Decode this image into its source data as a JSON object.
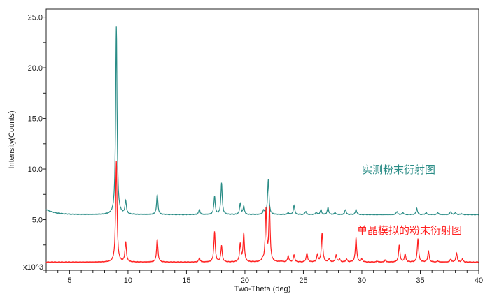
{
  "chart_data": {
    "type": "line",
    "title": "",
    "xlabel": "Two-Theta (deg)",
    "ylabel": "Intensity(Counts)",
    "y_multiplier_label": "x10^3",
    "xlim": [
      3,
      40
    ],
    "ylim": [
      0,
      25.8
    ],
    "x_ticks": [
      5,
      10,
      15,
      20,
      25,
      30,
      35,
      40
    ],
    "x_tick_labels": [
      "5",
      "10",
      "15",
      "20",
      "25",
      "30",
      "35",
      "40"
    ],
    "y_ticks": [
      5,
      10,
      15,
      20,
      25
    ],
    "y_tick_labels": [
      "5.0",
      "10.0",
      "15.0",
      "20.0",
      "25.0"
    ],
    "grid": false,
    "series": [
      {
        "name": "实测粉末衍射图",
        "color": "#2a8c86",
        "baseline": 5.5,
        "baseline_start": 6.0,
        "peaks": [
          [
            9.0,
            24.1
          ],
          [
            9.8,
            6.8
          ],
          [
            12.5,
            7.5
          ],
          [
            16.1,
            6.0
          ],
          [
            17.4,
            7.3
          ],
          [
            18.0,
            8.6
          ],
          [
            19.6,
            6.6
          ],
          [
            19.9,
            6.3
          ],
          [
            21.6,
            5.9
          ],
          [
            22.0,
            9.0
          ],
          [
            23.7,
            5.7
          ],
          [
            24.2,
            6.4
          ],
          [
            25.2,
            5.8
          ],
          [
            26.1,
            5.7
          ],
          [
            26.5,
            6.0
          ],
          [
            27.1,
            6.2
          ],
          [
            27.7,
            5.7
          ],
          [
            28.6,
            6.0
          ],
          [
            29.5,
            6.0
          ],
          [
            33.0,
            5.8
          ],
          [
            33.5,
            5.7
          ],
          [
            34.7,
            6.1
          ],
          [
            35.5,
            5.7
          ],
          [
            36.5,
            5.7
          ],
          [
            37.6,
            5.8
          ],
          [
            38.0,
            5.7
          ],
          [
            38.5,
            5.6
          ]
        ]
      },
      {
        "name": "单晶模拟的粉末衍射图",
        "color": "#ff2020",
        "baseline": 0.8,
        "peaks": [
          [
            9.0,
            10.8
          ],
          [
            9.8,
            2.8
          ],
          [
            12.5,
            3.1
          ],
          [
            16.1,
            1.2
          ],
          [
            17.4,
            3.8
          ],
          [
            18.0,
            2.4
          ],
          [
            19.6,
            2.6
          ],
          [
            19.9,
            3.6
          ],
          [
            21.5,
            1.0
          ],
          [
            21.8,
            5.9
          ],
          [
            22.1,
            6.1
          ],
          [
            23.1,
            0.9
          ],
          [
            23.7,
            1.4
          ],
          [
            24.2,
            1.5
          ],
          [
            25.3,
            1.7
          ],
          [
            26.2,
            1.5
          ],
          [
            26.6,
            3.7
          ],
          [
            27.2,
            1.1
          ],
          [
            27.8,
            1.5
          ],
          [
            28.1,
            1.1
          ],
          [
            28.7,
            1.1
          ],
          [
            29.5,
            3.2
          ],
          [
            30.0,
            1.1
          ],
          [
            31.3,
            0.9
          ],
          [
            32.0,
            1.0
          ],
          [
            33.2,
            2.5
          ],
          [
            33.7,
            1.6
          ],
          [
            34.8,
            3.1
          ],
          [
            35.7,
            1.9
          ],
          [
            36.5,
            0.9
          ],
          [
            37.6,
            1.1
          ],
          [
            38.1,
            1.7
          ],
          [
            38.6,
            1.1
          ]
        ]
      }
    ]
  }
}
